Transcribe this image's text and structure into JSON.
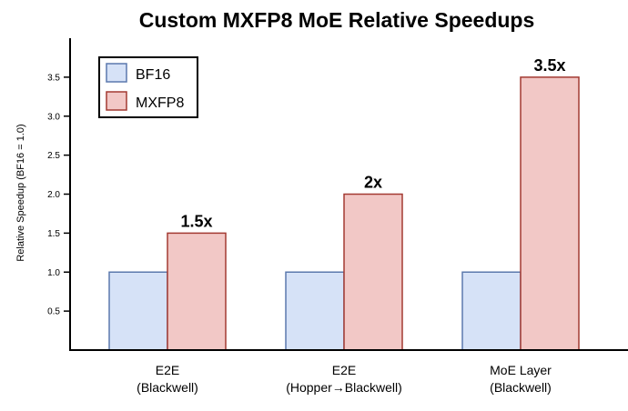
{
  "chart_data": {
    "type": "bar",
    "title": "Custom MXFP8 MoE Relative Speedups",
    "xlabel": "",
    "ylabel": "Relative Speedup (BF16 = 1.0)",
    "ylim": [
      0,
      4.0
    ],
    "yticks": [
      0.5,
      1.0,
      1.5,
      2.0,
      2.5,
      3.0,
      3.5
    ],
    "ytick_labels": [
      "0.5",
      "1.0",
      "1.5",
      "2.0",
      "2.5",
      "3.0",
      "3.5"
    ],
    "categories": [
      [
        "E2E",
        "(Blackwell)"
      ],
      [
        "E2E",
        "(Hopper→Blackwell)"
      ],
      [
        "MoE Layer",
        "(Blackwell)"
      ]
    ],
    "series": [
      {
        "name": "BF16",
        "values": [
          1.0,
          1.0,
          1.0
        ],
        "fill": "#d6e2f7",
        "stroke": "#5b79ad"
      },
      {
        "name": "MXFP8",
        "values": [
          1.5,
          2.0,
          3.5
        ],
        "fill": "#f2c8c6",
        "stroke": "#a33a32"
      }
    ],
    "data_labels": [
      "1.5x",
      "2x",
      "3.5x"
    ],
    "legend": {
      "placement": "top-left"
    },
    "grid": false
  }
}
